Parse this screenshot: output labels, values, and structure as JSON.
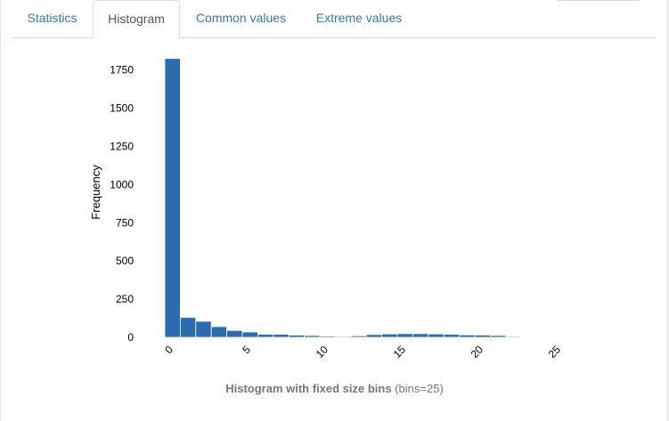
{
  "tabs": [
    {
      "label": "Statistics",
      "active": false
    },
    {
      "label": "Histogram",
      "active": true
    },
    {
      "label": "Common values",
      "active": false
    },
    {
      "label": "Extreme values",
      "active": false
    }
  ],
  "colors": {
    "bar": "#2b6cb0",
    "tab_link": "#337ab7",
    "caption": "#777777"
  },
  "caption": {
    "title": "Histogram with fixed size bins",
    "suffix": "(bins=25)"
  },
  "chart_data": {
    "type": "bar",
    "ylabel": "Frequency",
    "xlabel": "",
    "bin_width": 1,
    "x_range": [
      0,
      25
    ],
    "ylim": [
      0,
      1800
    ],
    "yticks": [
      0,
      250,
      500,
      750,
      1000,
      1250,
      1500,
      1750
    ],
    "xticks": [
      0,
      5,
      10,
      15,
      20,
      25
    ],
    "bin_edges": [
      0,
      1,
      2,
      3,
      4,
      5,
      6,
      7,
      8,
      9,
      10,
      11,
      12,
      13,
      14,
      15,
      16,
      17,
      18,
      19,
      20,
      21,
      22,
      23,
      24,
      25
    ],
    "values": [
      1825,
      130,
      105,
      70,
      45,
      35,
      20,
      20,
      15,
      12,
      8,
      6,
      10,
      18,
      22,
      24,
      24,
      22,
      20,
      16,
      15,
      12,
      6,
      3,
      2
    ]
  }
}
